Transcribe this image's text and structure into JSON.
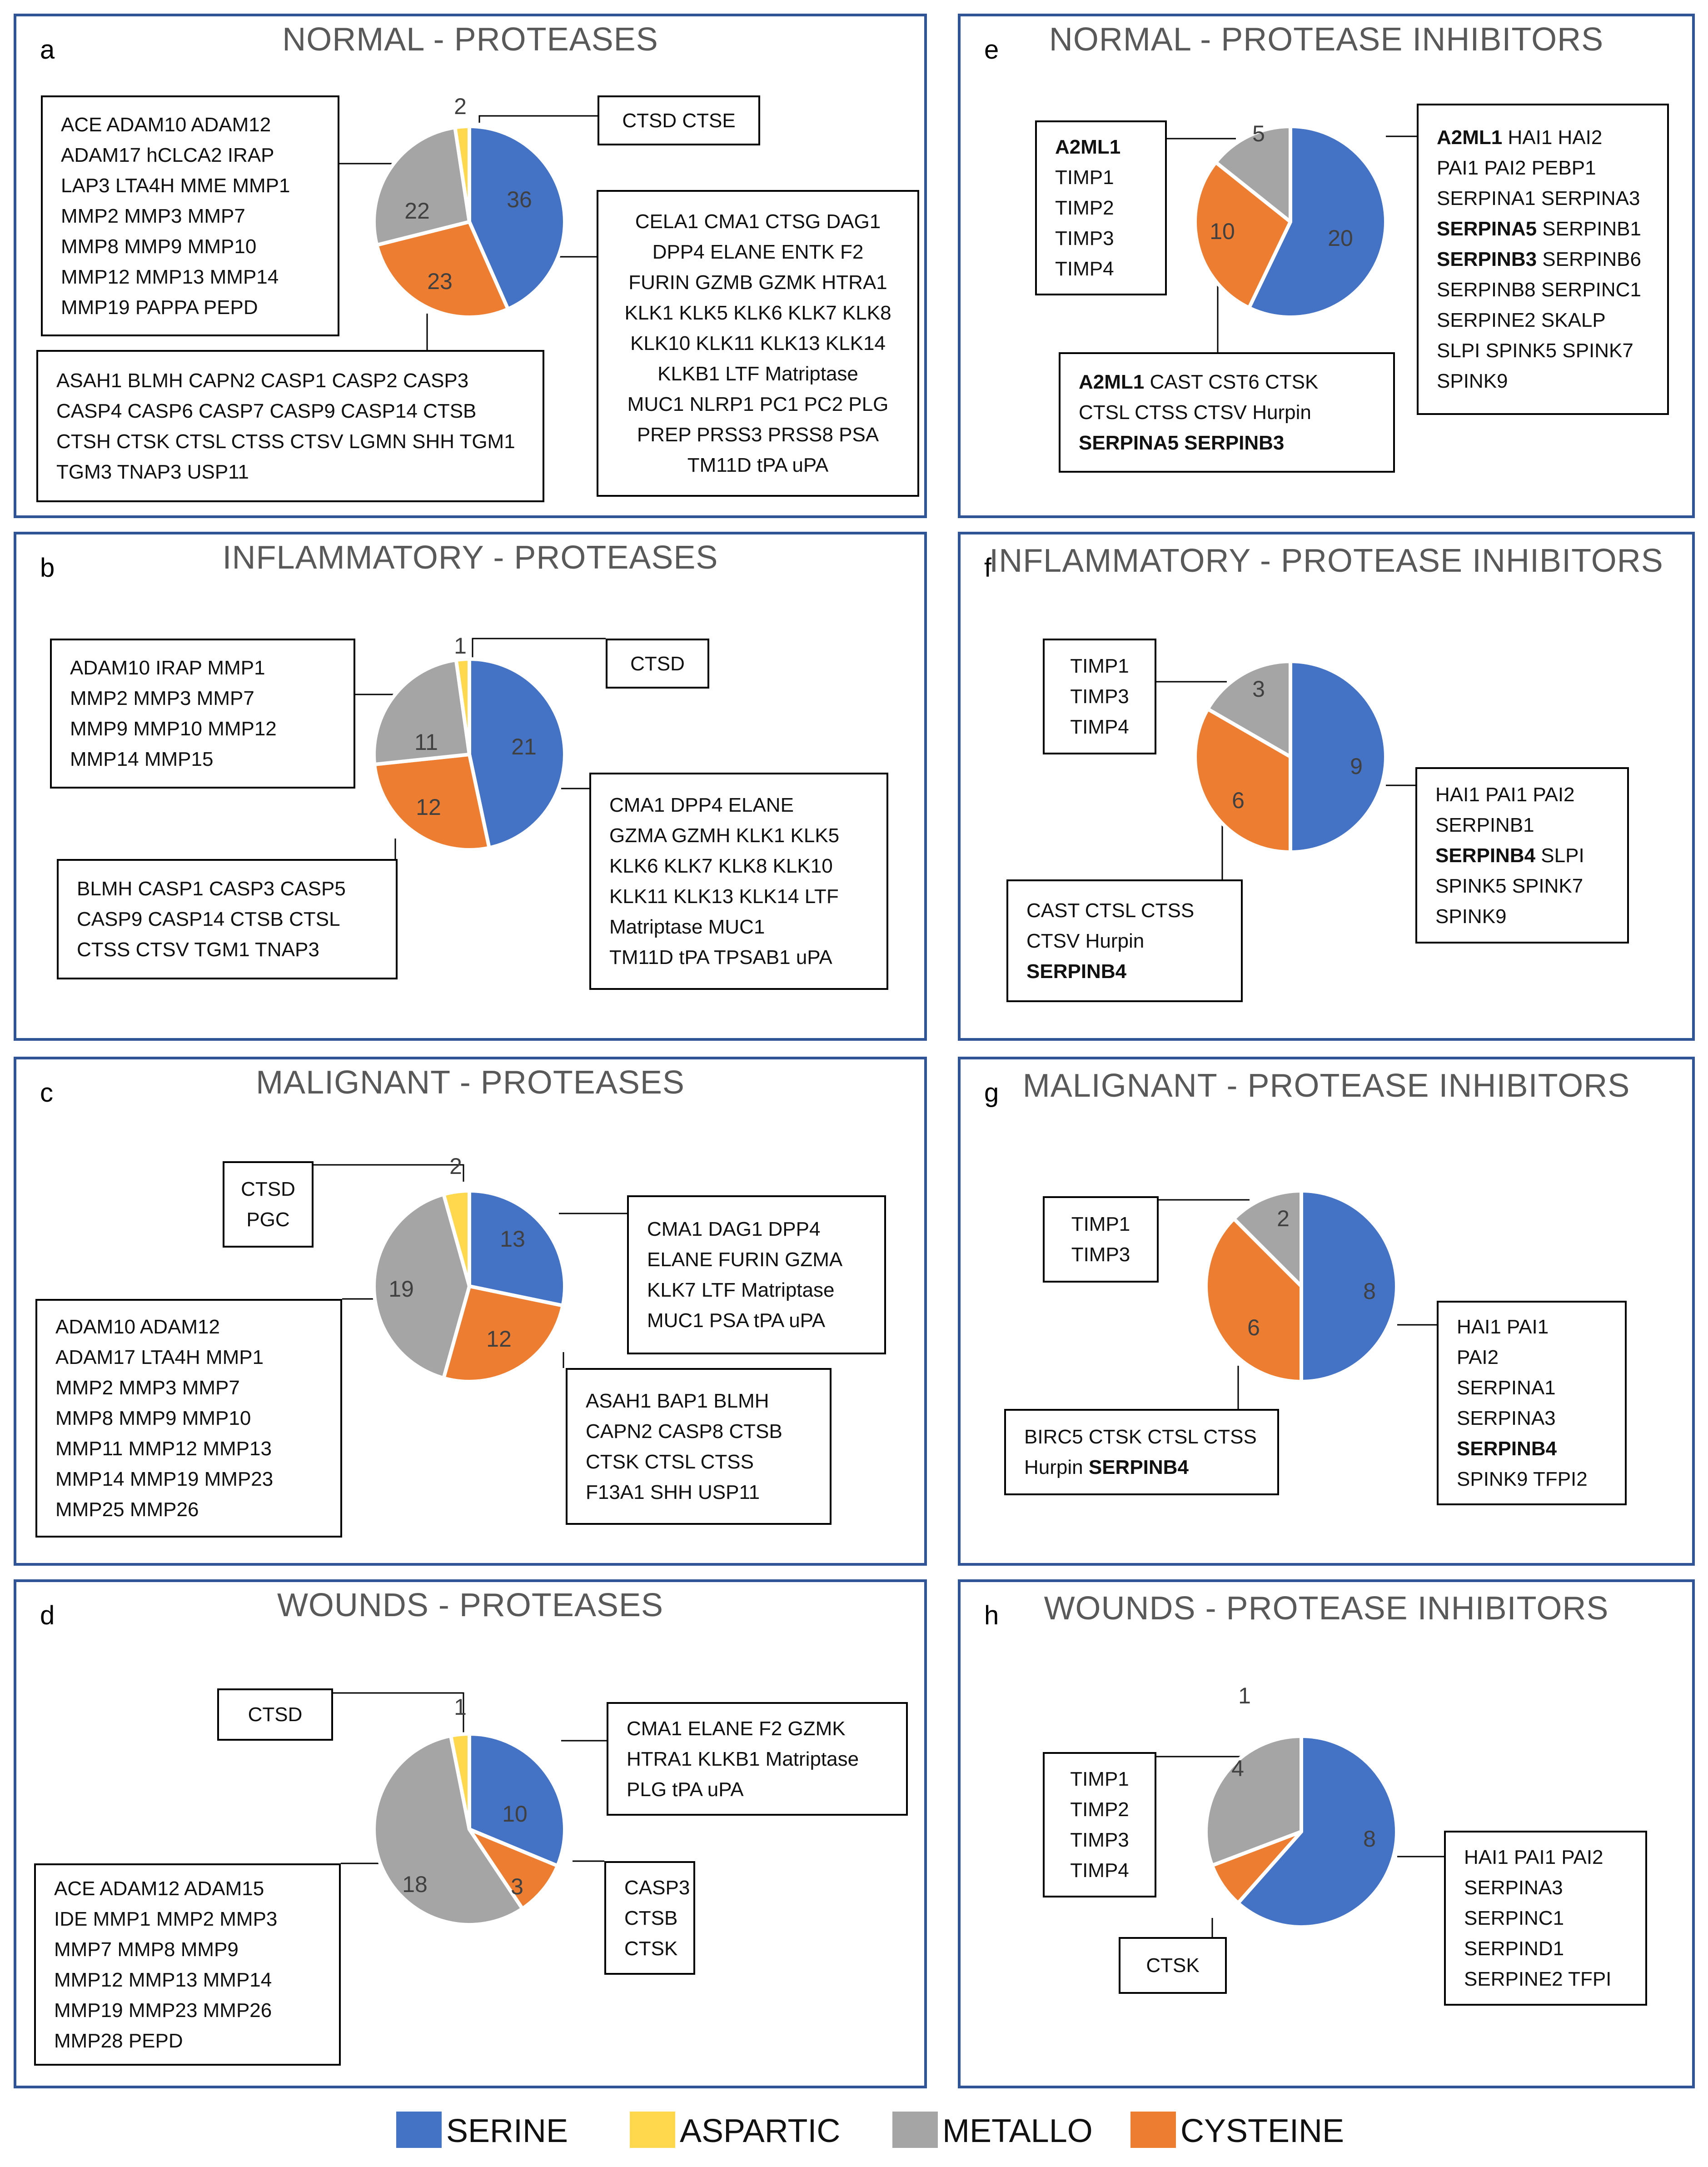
{
  "colors": {
    "serine": "#4472c4",
    "aspartic": "#ffd84d",
    "metallo": "#a5a5a5",
    "cysteine": "#ed7d31",
    "border": "#2f5597"
  },
  "legend": [
    {
      "key": "serine",
      "label": "SERINE"
    },
    {
      "key": "aspartic",
      "label": "ASPARTIC"
    },
    {
      "key": "metallo",
      "label": "METALLO"
    },
    {
      "key": "cysteine",
      "label": "CYSTEINE"
    }
  ],
  "chart_data": [
    {
      "id": "a",
      "type": "pie",
      "title": "NORMAL - PROTEASES",
      "slices": [
        {
          "category": "serine",
          "value": 36
        },
        {
          "category": "cysteine",
          "value": 23
        },
        {
          "category": "metallo",
          "value": 22
        },
        {
          "category": "aspartic",
          "value": 2
        }
      ],
      "labels": [
        {
          "category": "aspartic",
          "lines": [
            [
              {
                "t": "CTSD CTSE"
              }
            ]
          ]
        },
        {
          "category": "metallo",
          "lines": [
            [
              {
                "t": "ACE ADAM10 ADAM12"
              }
            ],
            [
              {
                "t": "ADAM17 hCLCA2 IRAP"
              }
            ],
            [
              {
                "t": "LAP3 LTA4H MME MMP1"
              }
            ],
            [
              {
                "t": "MMP2 MMP3 MMP7"
              }
            ],
            [
              {
                "t": "MMP8 MMP9 MMP10"
              }
            ],
            [
              {
                "t": "MMP12 MMP13 MMP14"
              }
            ],
            [
              {
                "t": "MMP19 PAPPA PEPD"
              }
            ]
          ]
        },
        {
          "category": "serine",
          "lines": [
            [
              {
                "t": "CELA1 CMA1 CTSG DAG1"
              }
            ],
            [
              {
                "t": "DPP4 ELANE ENTK F2"
              }
            ],
            [
              {
                "t": "FURIN GZMB GZMK HTRA1"
              }
            ],
            [
              {
                "t": "KLK1 KLK5 KLK6 KLK7 KLK8"
              }
            ],
            [
              {
                "t": "KLK10 KLK11 KLK13 KLK14"
              }
            ],
            [
              {
                "t": "KLKB1 LTF Matriptase"
              }
            ],
            [
              {
                "t": "MUC1 NLRP1 PC1 PC2 PLG"
              }
            ],
            [
              {
                "t": "PREP PRSS3 PRSS8 PSA"
              }
            ],
            [
              {
                "t": "TM11D tPA uPA"
              }
            ]
          ]
        },
        {
          "category": "cysteine",
          "lines": [
            [
              {
                "t": "ASAH1 BLMH CAPN2 CASP1 CASP2 CASP3"
              }
            ],
            [
              {
                "t": "CASP4 CASP6 CASP7 CASP9 CASP14 CTSB"
              }
            ],
            [
              {
                "t": "CTSH CTSK CTSL CTSS CTSV LGMN SHH TGM1"
              }
            ],
            [
              {
                "t": "TGM3 TNAP3 USP11"
              }
            ]
          ]
        }
      ]
    },
    {
      "id": "b",
      "type": "pie",
      "title": "INFLAMMATORY - PROTEASES",
      "slices": [
        {
          "category": "serine",
          "value": 21
        },
        {
          "category": "cysteine",
          "value": 12
        },
        {
          "category": "metallo",
          "value": 11
        },
        {
          "category": "aspartic",
          "value": 1
        }
      ],
      "labels": [
        {
          "category": "aspartic",
          "lines": [
            [
              {
                "t": "CTSD"
              }
            ]
          ]
        },
        {
          "category": "metallo",
          "lines": [
            [
              {
                "t": "ADAM10 IRAP MMP1"
              }
            ],
            [
              {
                "t": "MMP2 MMP3 MMP7"
              }
            ],
            [
              {
                "t": "MMP9 MMP10 MMP12"
              }
            ],
            [
              {
                "t": "MMP14 MMP15"
              }
            ]
          ]
        },
        {
          "category": "serine",
          "lines": [
            [
              {
                "t": "CMA1 DPP4 ELANE"
              }
            ],
            [
              {
                "t": "GZMA GZMH KLK1 KLK5"
              }
            ],
            [
              {
                "t": "KLK6 KLK7 KLK8 KLK10"
              }
            ],
            [
              {
                "t": "KLK11 KLK13 KLK14 LTF"
              }
            ],
            [
              {
                "t": "Matriptase MUC1"
              }
            ],
            [
              {
                "t": "TM11D tPA TPSAB1 uPA"
              }
            ]
          ]
        },
        {
          "category": "cysteine",
          "lines": [
            [
              {
                "t": "BLMH CASP1 CASP3 CASP5"
              }
            ],
            [
              {
                "t": "CASP9 CASP14 CTSB CTSL"
              }
            ],
            [
              {
                "t": "CTSS CTSV TGM1 TNAP3"
              }
            ]
          ]
        }
      ]
    },
    {
      "id": "c",
      "type": "pie",
      "title": "MALIGNANT - PROTEASES",
      "slices": [
        {
          "category": "serine",
          "value": 13
        },
        {
          "category": "cysteine",
          "value": 12
        },
        {
          "category": "metallo",
          "value": 19
        },
        {
          "category": "aspartic",
          "value": 2
        }
      ],
      "labels": [
        {
          "category": "aspartic",
          "lines": [
            [
              {
                "t": "CTSD"
              }
            ],
            [
              {
                "t": "PGC"
              }
            ]
          ]
        },
        {
          "category": "serine",
          "lines": [
            [
              {
                "t": "CMA1 DAG1 DPP4"
              }
            ],
            [
              {
                "t": "ELANE FURIN GZMA"
              }
            ],
            [
              {
                "t": "KLK7 LTF Matriptase"
              }
            ],
            [
              {
                "t": "MUC1 PSA tPA uPA"
              }
            ]
          ]
        },
        {
          "category": "metallo",
          "lines": [
            [
              {
                "t": "ADAM10 ADAM12"
              }
            ],
            [
              {
                "t": "ADAM17 LTA4H MMP1"
              }
            ],
            [
              {
                "t": "MMP2 MMP3 MMP7"
              }
            ],
            [
              {
                "t": "MMP8 MMP9 MMP10"
              }
            ],
            [
              {
                "t": "MMP11 MMP12 MMP13"
              }
            ],
            [
              {
                "t": "MMP14 MMP19 MMP23"
              }
            ],
            [
              {
                "t": "MMP25 MMP26"
              }
            ]
          ]
        },
        {
          "category": "cysteine",
          "lines": [
            [
              {
                "t": "ASAH1 BAP1 BLMH"
              }
            ],
            [
              {
                "t": "CAPN2 CASP8 CTSB"
              }
            ],
            [
              {
                "t": "CTSK CTSL CTSS"
              }
            ],
            [
              {
                "t": "F13A1 SHH USP11"
              }
            ]
          ]
        }
      ]
    },
    {
      "id": "d",
      "type": "pie",
      "title": "WOUNDS - PROTEASES",
      "slices": [
        {
          "category": "serine",
          "value": 10
        },
        {
          "category": "cysteine",
          "value": 3
        },
        {
          "category": "metallo",
          "value": 18
        },
        {
          "category": "aspartic",
          "value": 1
        }
      ],
      "labels": [
        {
          "category": "aspartic",
          "lines": [
            [
              {
                "t": "CTSD"
              }
            ]
          ]
        },
        {
          "category": "serine",
          "lines": [
            [
              {
                "t": "CMA1 ELANE F2 GZMK"
              }
            ],
            [
              {
                "t": "HTRA1 KLKB1 Matriptase"
              }
            ],
            [
              {
                "t": "PLG tPA uPA"
              }
            ]
          ]
        },
        {
          "category": "metallo",
          "lines": [
            [
              {
                "t": "ACE ADAM12 ADAM15"
              }
            ],
            [
              {
                "t": "IDE MMP1 MMP2 MMP3"
              }
            ],
            [
              {
                "t": "MMP7 MMP8 MMP9"
              }
            ],
            [
              {
                "t": "MMP12 MMP13 MMP14"
              }
            ],
            [
              {
                "t": "MMP19 MMP23 MMP26"
              }
            ],
            [
              {
                "t": "MMP28 PEPD"
              }
            ]
          ]
        },
        {
          "category": "cysteine",
          "lines": [
            [
              {
                "t": "CASP3"
              }
            ],
            [
              {
                "t": "CTSB"
              }
            ],
            [
              {
                "t": "CTSK"
              }
            ]
          ]
        }
      ]
    },
    {
      "id": "e",
      "type": "pie",
      "title": "NORMAL - PROTEASE INHIBITORS",
      "slices": [
        {
          "category": "serine",
          "value": 20
        },
        {
          "category": "cysteine",
          "value": 10
        },
        {
          "category": "metallo",
          "value": 5
        }
      ],
      "labels": [
        {
          "category": "metallo",
          "lines": [
            [
              {
                "t": "A2ML1",
                "b": true
              }
            ],
            [
              {
                "t": "TIMP1"
              }
            ],
            [
              {
                "t": "TIMP2"
              }
            ],
            [
              {
                "t": "TIMP3"
              }
            ],
            [
              {
                "t": "TIMP4"
              }
            ]
          ]
        },
        {
          "category": "serine",
          "lines": [
            [
              {
                "t": "A2ML1",
                "b": true
              },
              {
                "t": " HAI1 HAI2"
              }
            ],
            [
              {
                "t": "PAI1 PAI2 PEBP1"
              }
            ],
            [
              {
                "t": "SERPINA1 SERPINA3"
              }
            ],
            [
              {
                "t": "SERPINA5",
                "b": true
              },
              {
                "t": " SERPINB1"
              }
            ],
            [
              {
                "t": "SERPINB3",
                "b": true
              },
              {
                "t": " SERPINB6"
              }
            ],
            [
              {
                "t": "SERPINB8 SERPINC1"
              }
            ],
            [
              {
                "t": "SERPINE2 SKALP"
              }
            ],
            [
              {
                "t": "SLPI SPINK5 SPINK7"
              }
            ],
            [
              {
                "t": "SPINK9"
              }
            ]
          ]
        },
        {
          "category": "cysteine",
          "lines": [
            [
              {
                "t": "A2ML1",
                "b": true
              },
              {
                "t": " CAST CST6 CTSK"
              }
            ],
            [
              {
                "t": "CTSL CTSS CTSV Hurpin"
              }
            ],
            [
              {
                "t": "SERPINA5 SERPINB3",
                "b": true
              }
            ]
          ]
        }
      ]
    },
    {
      "id": "f",
      "type": "pie",
      "title": "INFLAMMATORY - PROTEASE INHIBITORS",
      "slices": [
        {
          "category": "serine",
          "value": 9
        },
        {
          "category": "cysteine",
          "value": 6
        },
        {
          "category": "metallo",
          "value": 3
        }
      ],
      "labels": [
        {
          "category": "metallo",
          "lines": [
            [
              {
                "t": "TIMP1"
              }
            ],
            [
              {
                "t": "TIMP3"
              }
            ],
            [
              {
                "t": "TIMP4"
              }
            ]
          ]
        },
        {
          "category": "serine",
          "lines": [
            [
              {
                "t": "HAI1 PAI1 PAI2"
              }
            ],
            [
              {
                "t": "SERPINB1"
              }
            ],
            [
              {
                "t": "SERPINB4",
                "b": true
              },
              {
                "t": " SLPI"
              }
            ],
            [
              {
                "t": "SPINK5 SPINK7"
              }
            ],
            [
              {
                "t": "SPINK9"
              }
            ]
          ]
        },
        {
          "category": "cysteine",
          "lines": [
            [
              {
                "t": "CAST CTSL CTSS"
              }
            ],
            [
              {
                "t": "CTSV Hurpin"
              }
            ],
            [
              {
                "t": "SERPINB4",
                "b": true
              }
            ]
          ]
        }
      ]
    },
    {
      "id": "g",
      "type": "pie",
      "title": "MALIGNANT - PROTEASE INHIBITORS",
      "slices": [
        {
          "category": "serine",
          "value": 8
        },
        {
          "category": "cysteine",
          "value": 6
        },
        {
          "category": "metallo",
          "value": 2
        }
      ],
      "labels": [
        {
          "category": "metallo",
          "lines": [
            [
              {
                "t": "TIMP1"
              }
            ],
            [
              {
                "t": "TIMP3"
              }
            ]
          ]
        },
        {
          "category": "serine",
          "lines": [
            [
              {
                "t": "HAI1 PAI1"
              }
            ],
            [
              {
                "t": "PAI2"
              }
            ],
            [
              {
                "t": "SERPINA1"
              }
            ],
            [
              {
                "t": "SERPINA3"
              }
            ],
            [
              {
                "t": "SERPINB4",
                "b": true
              }
            ],
            [
              {
                "t": "SPINK9 TFPI2"
              }
            ]
          ]
        },
        {
          "category": "cysteine",
          "lines": [
            [
              {
                "t": "BIRC5 CTSK CTSL CTSS"
              }
            ],
            [
              {
                "t": "Hurpin "
              },
              {
                "t": "SERPINB4",
                "b": true
              }
            ]
          ]
        }
      ]
    },
    {
      "id": "h",
      "type": "pie",
      "title": "WOUNDS - PROTEASE INHIBITORS",
      "slices": [
        {
          "category": "serine",
          "value": 8
        },
        {
          "category": "cysteine",
          "value": 1
        },
        {
          "category": "metallo",
          "value": 4
        }
      ],
      "labels": [
        {
          "category": "metallo",
          "lines": [
            [
              {
                "t": "TIMP1"
              }
            ],
            [
              {
                "t": "TIMP2"
              }
            ],
            [
              {
                "t": "TIMP3"
              }
            ],
            [
              {
                "t": "TIMP4"
              }
            ]
          ]
        },
        {
          "category": "serine",
          "lines": [
            [
              {
                "t": "HAI1 PAI1 PAI2"
              }
            ],
            [
              {
                "t": "SERPINA3"
              }
            ],
            [
              {
                "t": "SERPINC1"
              }
            ],
            [
              {
                "t": "SERPIND1"
              }
            ],
            [
              {
                "t": "SERPINE2 TFPI"
              }
            ]
          ]
        },
        {
          "category": "cysteine",
          "lines": [
            [
              {
                "t": "CTSK"
              }
            ]
          ]
        }
      ]
    }
  ]
}
